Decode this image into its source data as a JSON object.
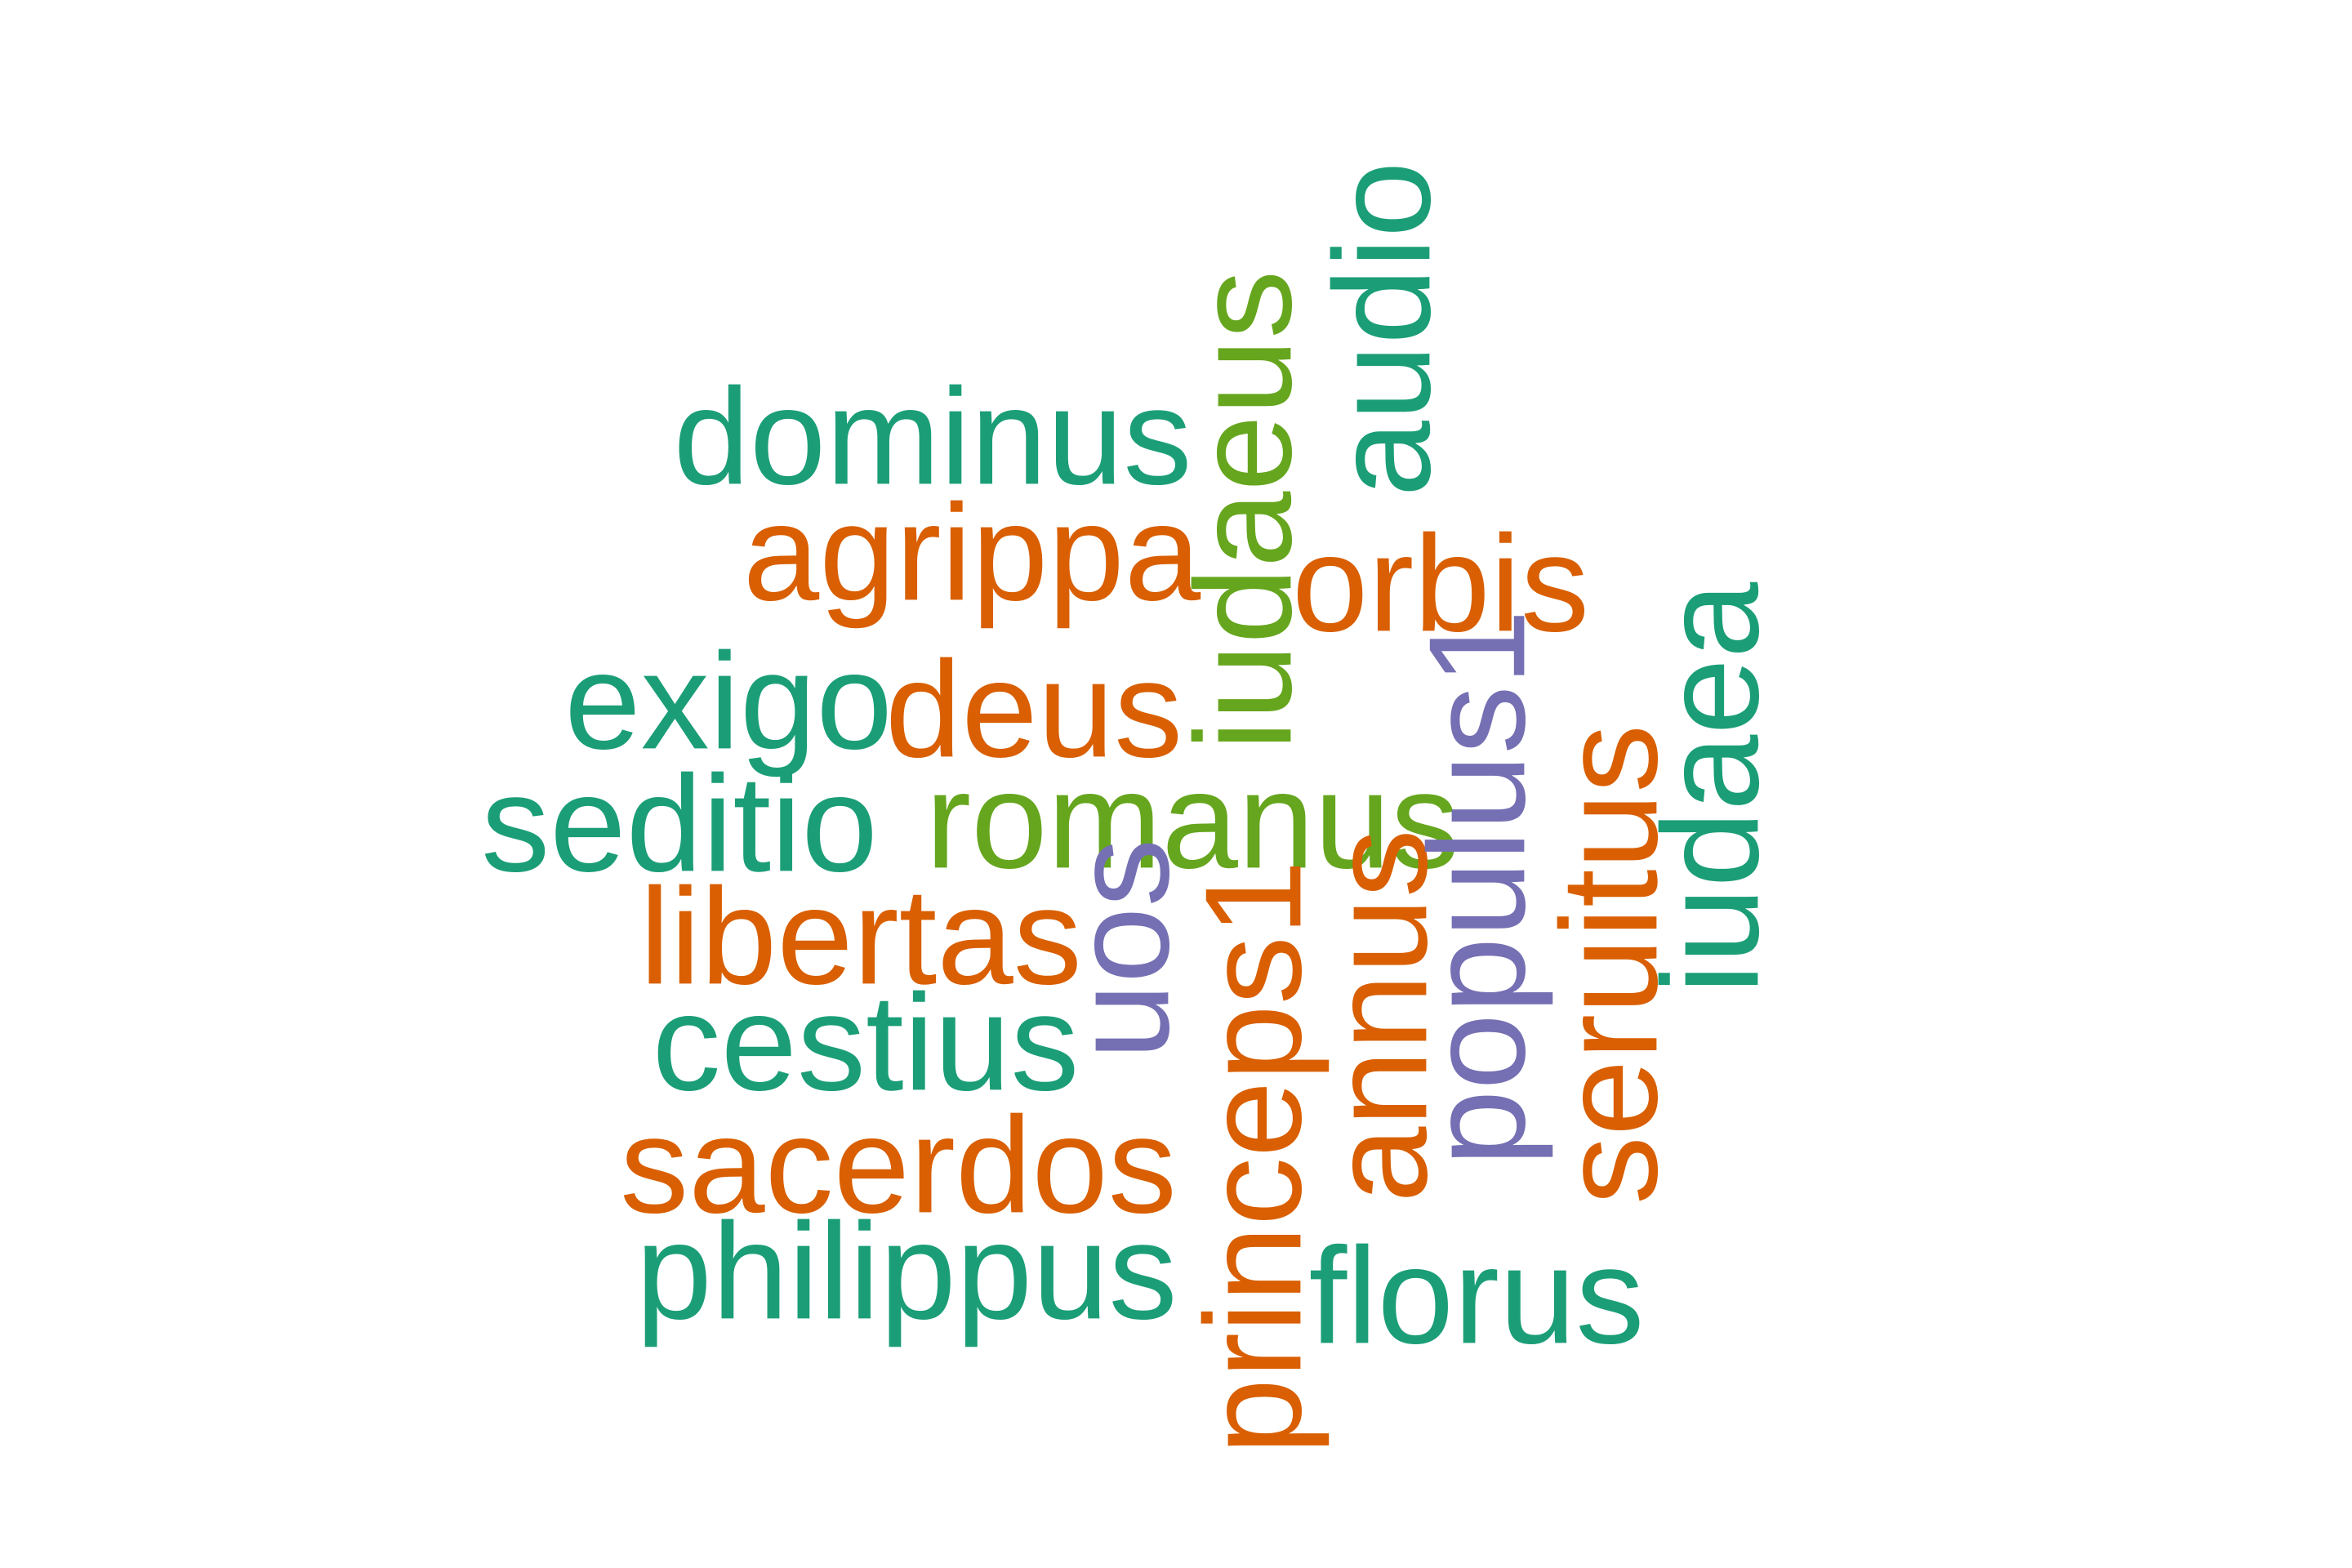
{
  "palette": {
    "teal": "#1b9e77",
    "orange": "#d95f02",
    "purple": "#7570b3",
    "green": "#66a61e"
  },
  "words": [
    {
      "text": "dominus",
      "color": "teal"
    },
    {
      "text": "agrippa",
      "color": "orange"
    },
    {
      "text": "exigo",
      "color": "teal"
    },
    {
      "text": "deus",
      "color": "orange"
    },
    {
      "text": "seditio",
      "color": "teal"
    },
    {
      "text": "romanus",
      "color": "green"
    },
    {
      "text": "libertas",
      "color": "orange"
    },
    {
      "text": "cestius",
      "color": "teal"
    },
    {
      "text": "sacerdos",
      "color": "orange"
    },
    {
      "text": "philippus",
      "color": "teal"
    },
    {
      "text": "florus",
      "color": "teal"
    },
    {
      "text": "orbis",
      "color": "orange"
    },
    {
      "text": "audio",
      "color": "teal"
    },
    {
      "text": "iudaeus",
      "color": "green"
    },
    {
      "text": "uos",
      "color": "purple"
    },
    {
      "text": "princeps1",
      "color": "orange"
    },
    {
      "text": "annus",
      "color": "orange"
    },
    {
      "text": "populus1",
      "color": "purple"
    },
    {
      "text": "seruitus",
      "color": "orange"
    },
    {
      "text": "iudaea",
      "color": "teal"
    }
  ]
}
